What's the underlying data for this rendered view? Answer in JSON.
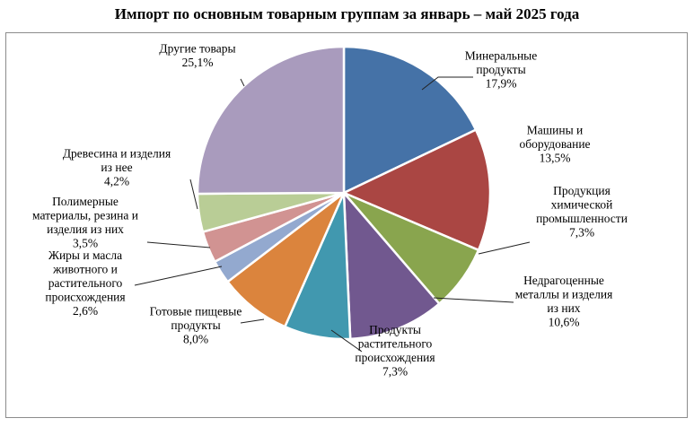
{
  "chart_data": {
    "type": "pie",
    "title": "Импорт по основным товарным группам за январь – май  2025 года",
    "slices": [
      {
        "lines": [
          "Минеральные",
          "продукты",
          "17,9%"
        ],
        "value": 17.9,
        "color": "#4572a7"
      },
      {
        "lines": [
          "Машины и",
          "оборудование",
          "13,5%"
        ],
        "value": 13.5,
        "color": "#aa4643"
      },
      {
        "lines": [
          "Продукция",
          "химической",
          "промышленности",
          "7,3%"
        ],
        "value": 7.3,
        "color": "#89a54e"
      },
      {
        "lines": [
          "Недрагоценные",
          "металлы и изделия",
          "из них",
          "10,6%"
        ],
        "value": 10.6,
        "color": "#71588f"
      },
      {
        "lines": [
          "Продукты",
          "растительного",
          "происхождения",
          "7,3%"
        ],
        "value": 7.3,
        "color": "#4198af"
      },
      {
        "lines": [
          "Готовые пищевые",
          "продукты",
          "8,0%"
        ],
        "value": 8.0,
        "color": "#db843d"
      },
      {
        "lines": [
          "Жиры и масла",
          "животного и",
          "растительного",
          "происхождения",
          "2,6%"
        ],
        "value": 2.6,
        "color": "#93a9cf"
      },
      {
        "lines": [
          "Полимерные",
          "материалы, резина и",
          "изделия из них",
          "3,5%"
        ],
        "value": 3.5,
        "color": "#d19392"
      },
      {
        "lines": [
          "Древесина и изделия",
          "из нее",
          "4,2%"
        ],
        "value": 4.2,
        "color": "#b9cd96"
      },
      {
        "lines": [
          "Другие товары",
          "25,1%"
        ],
        "value": 25.1,
        "color": "#a99bbd"
      }
    ],
    "legend": "none"
  }
}
